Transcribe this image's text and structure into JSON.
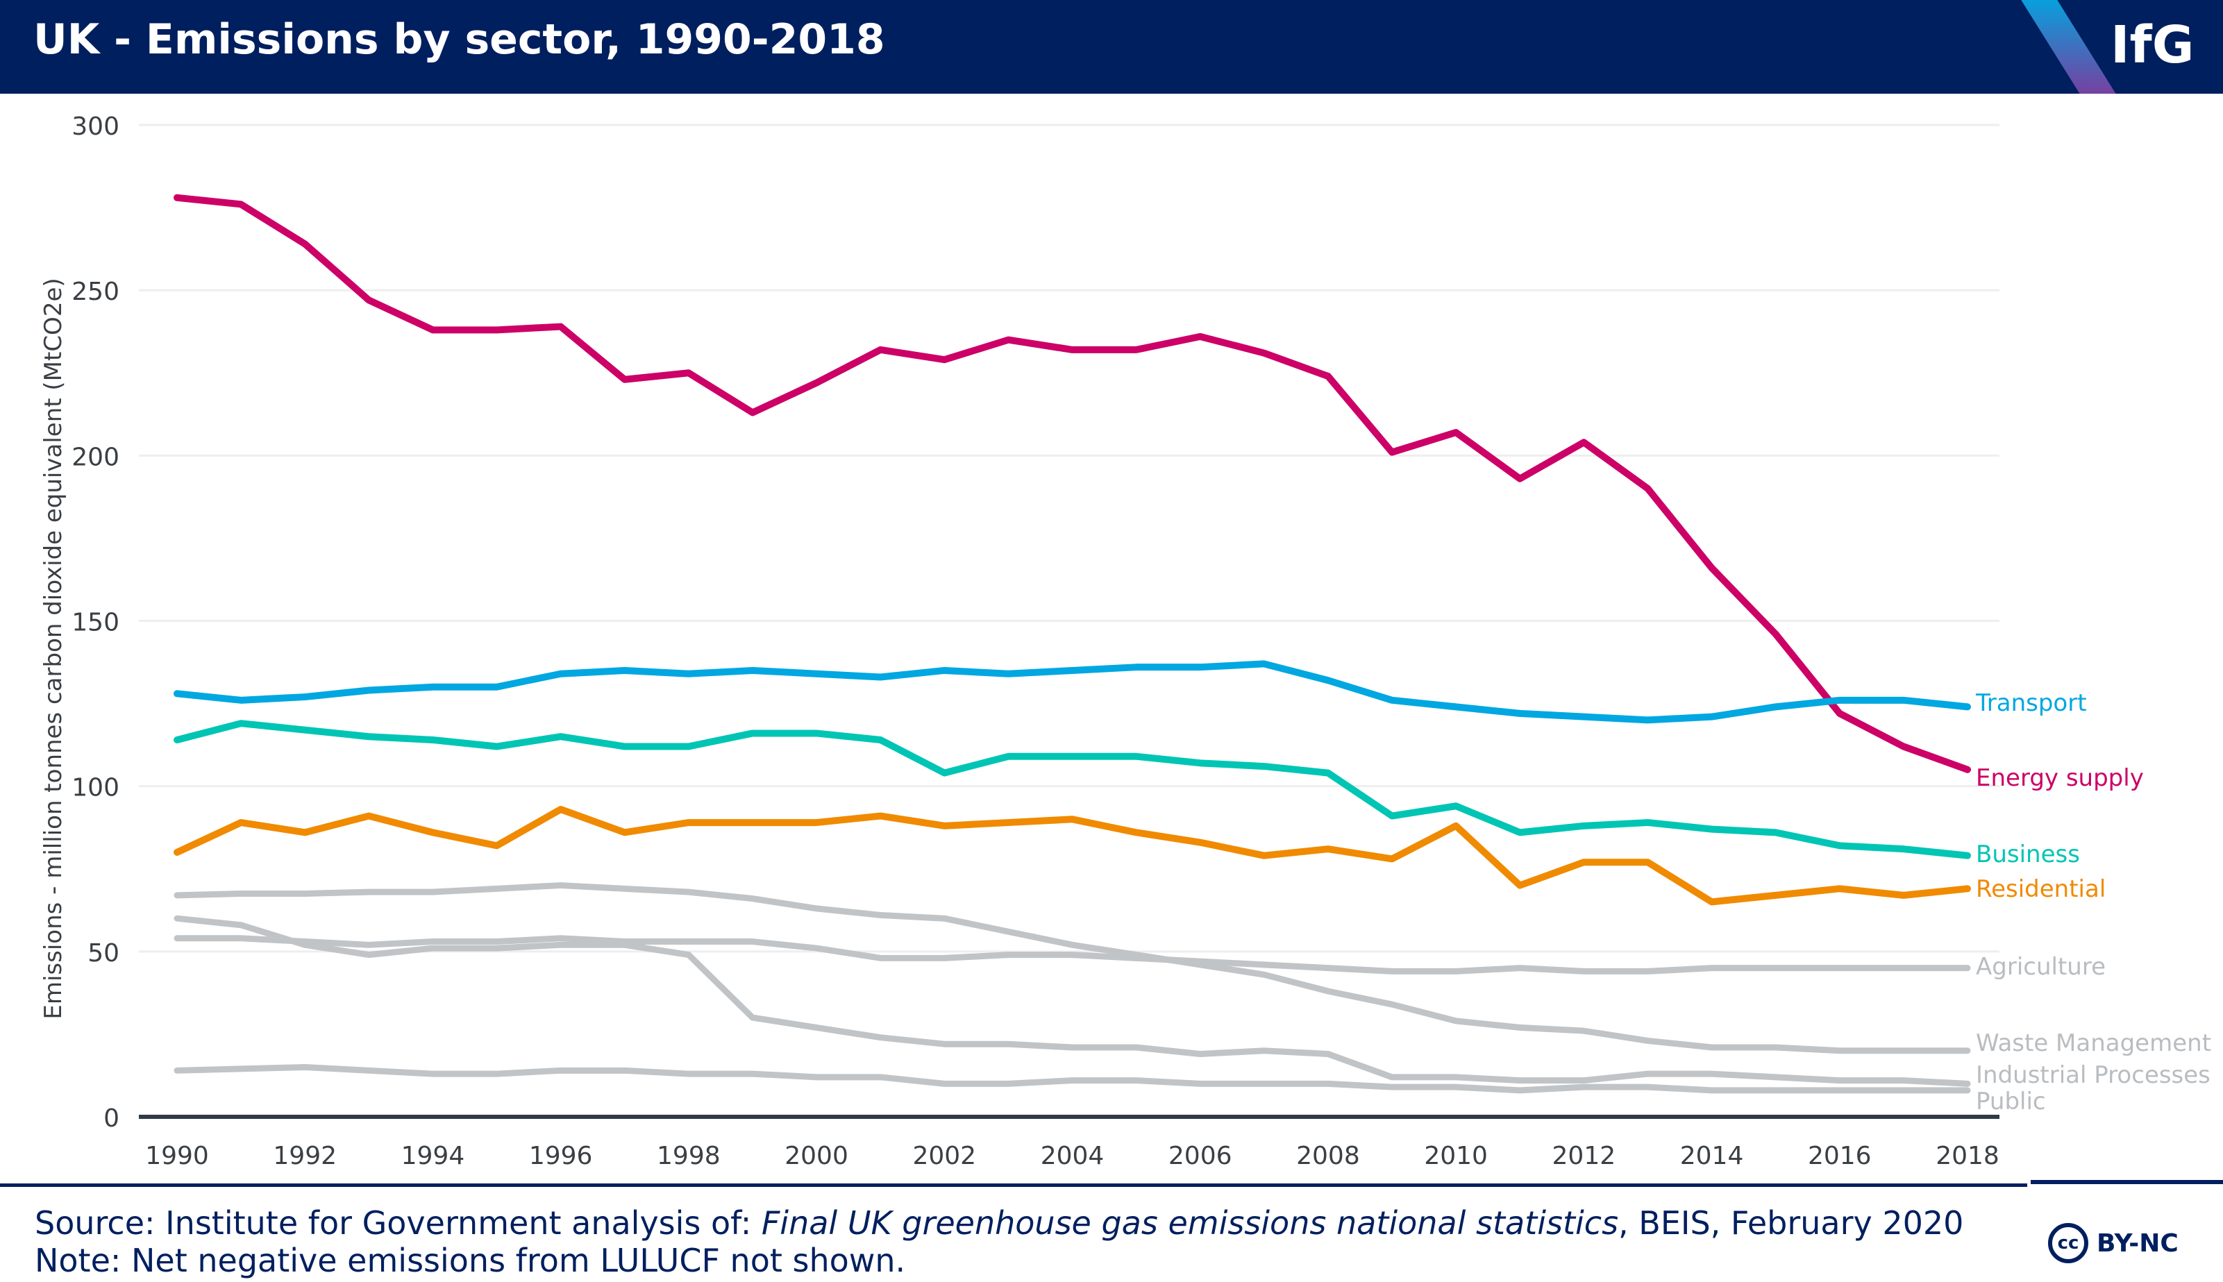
{
  "header": {
    "title": "UK - Emissions by sector, 1990-2018",
    "logo_text": "IfG"
  },
  "footer": {
    "source_prefix": "Source: Institute for Government analysis of: ",
    "source_italic": "Final UK greenhouse gas emissions national statistics",
    "source_suffix": ", BEIS, February 2020",
    "note": "Note: Net negative emissions from LULUCF not shown.",
    "license": "BY-NC",
    "license_icon": "cc-icon"
  },
  "chart_data": {
    "type": "line",
    "title": "UK - Emissions by sector, 1990-2018",
    "ylabel": "Emissions - million tonnes carbon dioxide equivalent (MtCO2e)",
    "xlabel": "",
    "ylim": [
      0,
      300
    ],
    "yticks": [
      0,
      50,
      100,
      150,
      200,
      250,
      300
    ],
    "xlim": [
      1990,
      2018
    ],
    "xticks": [
      1990,
      1992,
      1994,
      1996,
      1998,
      2000,
      2002,
      2004,
      2006,
      2008,
      2010,
      2012,
      2014,
      2016,
      2018
    ],
    "grid": "horizontal",
    "legend": "direct labels at right",
    "x": [
      1990,
      1991,
      1992,
      1993,
      1994,
      1995,
      1996,
      1997,
      1998,
      1999,
      2000,
      2001,
      2002,
      2003,
      2004,
      2005,
      2006,
      2007,
      2008,
      2009,
      2010,
      2011,
      2012,
      2013,
      2014,
      2015,
      2016,
      2017,
      2018
    ],
    "series": [
      {
        "name": "Transport",
        "color": "#00a7e1",
        "values": [
          128,
          126,
          127,
          129,
          130,
          130,
          134,
          135,
          134,
          135,
          134,
          133,
          135,
          134,
          135,
          136,
          136,
          137,
          132,
          126,
          124,
          122,
          121,
          120,
          121,
          124,
          126,
          126,
          124
        ]
      },
      {
        "name": "Energy supply",
        "color": "#cc0066",
        "values": [
          278,
          276,
          264,
          247,
          238,
          238,
          239,
          223,
          225,
          213,
          222,
          232,
          229,
          235,
          232,
          232,
          236,
          231,
          224,
          201,
          207,
          193,
          204,
          190,
          166,
          146,
          122,
          112,
          105
        ]
      },
      {
        "name": "Business",
        "color": "#00c5b4",
        "values": [
          114,
          119,
          117,
          115,
          114,
          112,
          115,
          112,
          112,
          116,
          116,
          114,
          104,
          109,
          109,
          109,
          107,
          106,
          104,
          91,
          94,
          86,
          88,
          89,
          87,
          86,
          82,
          81,
          79
        ]
      },
      {
        "name": "Residential",
        "color": "#f08a00",
        "values": [
          80,
          89,
          86,
          91,
          86,
          82,
          93,
          86,
          89,
          89,
          89,
          91,
          88,
          89,
          90,
          86,
          83,
          79,
          81,
          78,
          88,
          70,
          77,
          77,
          65,
          67,
          69,
          67,
          69
        ]
      },
      {
        "name": "Agriculture",
        "color": "#c1c4c7",
        "values": [
          54,
          54,
          53,
          52,
          53,
          53,
          54,
          53,
          53,
          53,
          51,
          48,
          48,
          49,
          49,
          48,
          47,
          46,
          45,
          44,
          44,
          45,
          44,
          44,
          45,
          45,
          45,
          45,
          45
        ]
      },
      {
        "name": "Waste Management",
        "color": "#c1c4c7",
        "values": [
          67,
          67.5,
          67.5,
          68,
          68,
          69,
          70,
          69,
          68,
          66,
          63,
          61,
          60,
          56,
          52,
          49,
          46,
          43,
          38,
          34,
          29,
          27,
          26,
          23,
          21,
          21,
          20,
          20,
          20
        ]
      },
      {
        "name": "Industrial Processes",
        "color": "#c1c4c7",
        "values": [
          60,
          58,
          52,
          49,
          51,
          51,
          52,
          52,
          49,
          30,
          27,
          24,
          22,
          22,
          21,
          21,
          19,
          20,
          19,
          12,
          12,
          11,
          11,
          13,
          13,
          12,
          11,
          11,
          10
        ]
      },
      {
        "name": "Public",
        "color": "#c1c4c7",
        "values": [
          14,
          14.5,
          15,
          14,
          13,
          13,
          14,
          14,
          13,
          13,
          12,
          12,
          10,
          10,
          11,
          11,
          10,
          10,
          10,
          9,
          9,
          8,
          9,
          9,
          8,
          8,
          8,
          8,
          8
        ]
      }
    ]
  }
}
